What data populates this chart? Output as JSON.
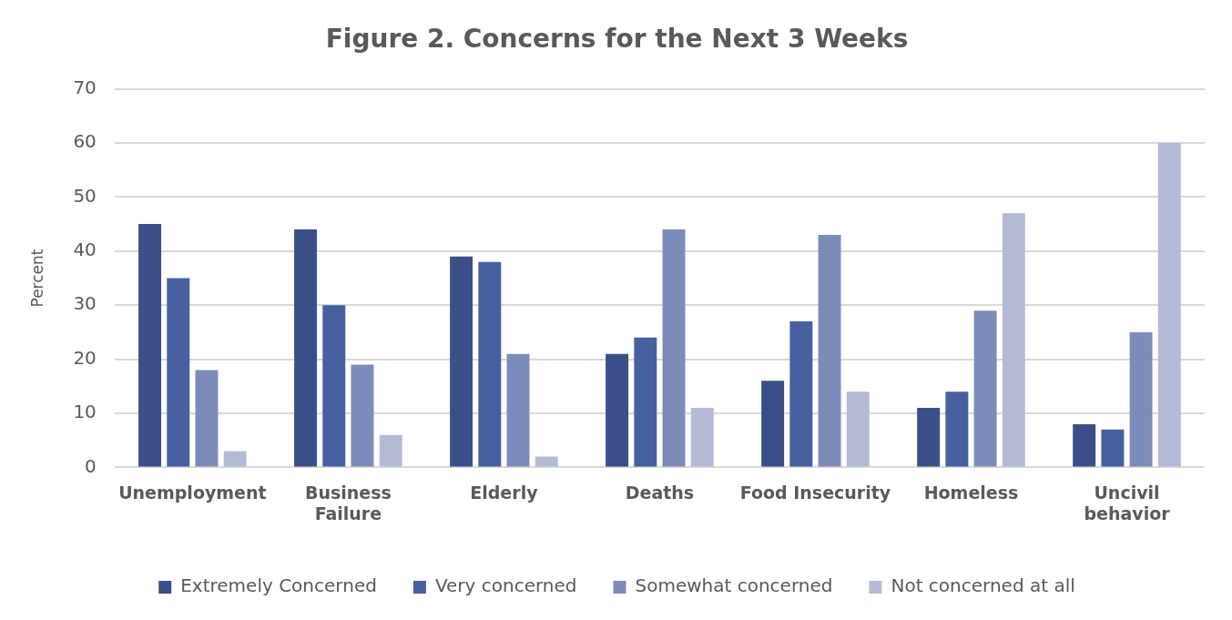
{
  "chart_data": {
    "type": "bar",
    "title": "Figure 2. Concerns for the Next 3 Weeks",
    "ylabel": "Percent",
    "categories": [
      "Unemployment",
      "Business\nFailure",
      "Elderly",
      "Deaths",
      "Food Insecurity",
      "Homeless",
      "Uncivil\nbehavior"
    ],
    "series": [
      {
        "name": "Extremely Concerned",
        "color": "#3a4f87",
        "values": [
          45,
          44,
          39,
          21,
          16,
          11,
          8
        ]
      },
      {
        "name": "Very concerned",
        "color": "#4660a0",
        "values": [
          35,
          30,
          38,
          24,
          27,
          14,
          7
        ]
      },
      {
        "name": "Somewhat concerned",
        "color": "#7d8bba",
        "values": [
          18,
          19,
          21,
          44,
          43,
          29,
          25
        ]
      },
      {
        "name": "Not concerned at all",
        "color": "#b4bad6",
        "values": [
          3,
          6,
          2,
          11,
          14,
          47,
          60
        ]
      }
    ],
    "ylim": [
      0,
      70
    ],
    "yticks": [
      0,
      10,
      20,
      30,
      40,
      50,
      60,
      70
    ],
    "grid": "y",
    "legend": "bottom"
  }
}
